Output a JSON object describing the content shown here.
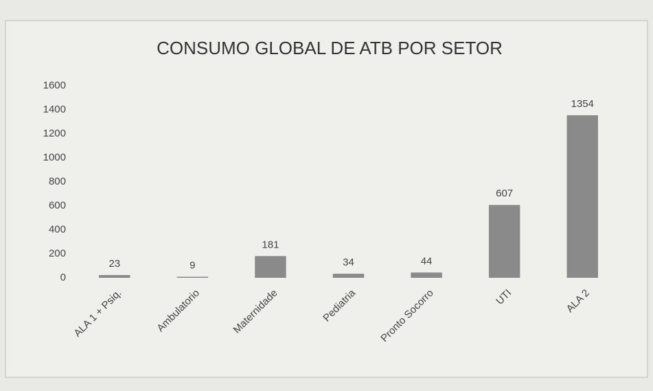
{
  "chart_data": {
    "type": "bar",
    "title": "CONSUMO GLOBAL DE ATB POR SETOR",
    "categories": [
      "ALA 1 + Psiq.",
      "Ambulatorio",
      "Maternidade",
      "Pediatria",
      "Pronto Socorro",
      "UTI",
      "ALA 2"
    ],
    "values": [
      23,
      9,
      181,
      34,
      44,
      607,
      1354
    ],
    "color": "#8a8a8a",
    "ylim": [
      0,
      1600
    ],
    "yticks": [
      0,
      200,
      400,
      600,
      800,
      1000,
      1200,
      1400,
      1600
    ],
    "grid": false
  }
}
